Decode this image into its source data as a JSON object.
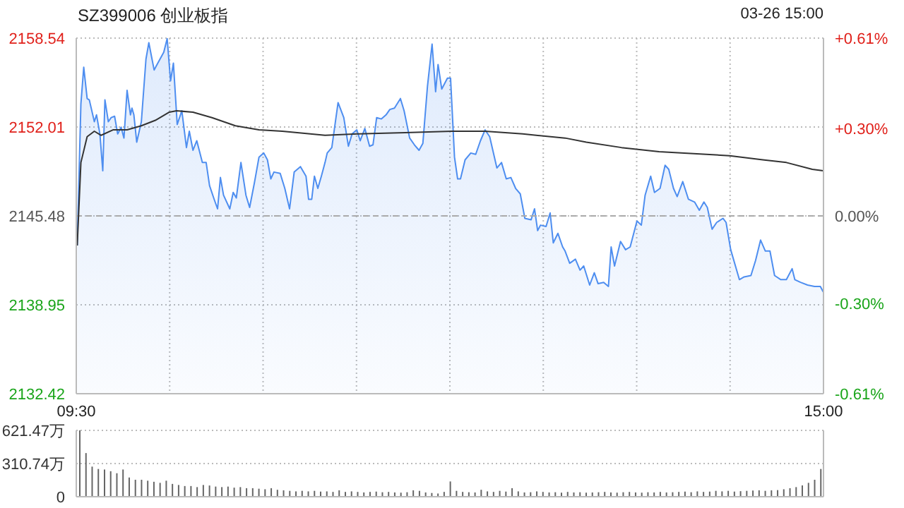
{
  "chart_data": [
    {
      "type": "area",
      "title": "SZ399006 创业板指",
      "subtitle": "03-26 15:00",
      "xlim": [
        9.5,
        15
      ],
      "xticks": [
        {
          "value": 9.5,
          "label": "09:30"
        },
        {
          "value": 10.1875,
          "label": null
        },
        {
          "value": 10.875,
          "label": null
        },
        {
          "value": 11.5625,
          "label": null
        },
        {
          "value": 12.25,
          "label": null
        },
        {
          "value": 12.9375,
          "label": null
        },
        {
          "value": 13.625,
          "label": null
        },
        {
          "value": 14.3125,
          "label": null
        },
        {
          "value": 15,
          "label": "15:00"
        }
      ],
      "ylim": [
        2132.42,
        2158.54
      ],
      "yticks": [
        2132.42,
        2138.95,
        2145.48,
        2152.01,
        2158.54
      ],
      "y2lim": [
        -0.61,
        0.61
      ],
      "y2ticks": [
        {
          "value": -0.61,
          "label": "-0.61%"
        },
        {
          "value": -0.3,
          "label": "-0.30%"
        },
        {
          "value": 0,
          "label": "0.00%"
        },
        {
          "value": 0.3,
          "label": "+0.30%"
        },
        {
          "value": 0.61,
          "label": "+0.61%"
        }
      ],
      "grid": true,
      "marker": "none",
      "ref_lines": [
        {
          "axis": "y",
          "value": 2145.48,
          "color": "#aaaaaa",
          "line_style": "dashed"
        }
      ],
      "series": [
        {
          "color": "#4e8ef0",
          "x": [
            9.507,
            9.534,
            9.555,
            9.58,
            9.596,
            9.633,
            9.649,
            9.674,
            9.695,
            9.711,
            9.736,
            9.757,
            9.782,
            9.805,
            9.83,
            9.851,
            9.874,
            9.899,
            9.91,
            9.924,
            9.945,
            9.979,
            10.013,
            10.034,
            10.073,
            10.1,
            10.144,
            10.169,
            10.194,
            10.215,
            10.243,
            10.277,
            10.311,
            10.332,
            10.359,
            10.387,
            10.405,
            10.428,
            10.456,
            10.481,
            10.515,
            10.54,
            10.561,
            10.584,
            10.63,
            10.655,
            10.678,
            10.712,
            10.749,
            10.776,
            10.811,
            10.845,
            10.88,
            10.907,
            10.932,
            10.955,
            11.001,
            11.035,
            11.07,
            11.104,
            11.15,
            11.191,
            11.21,
            11.233,
            11.253,
            11.278,
            11.304,
            11.331,
            11.347,
            11.381,
            11.427,
            11.469,
            11.503,
            11.53,
            11.565,
            11.59,
            11.624,
            11.659,
            11.684,
            11.711,
            11.746,
            11.78,
            11.808,
            11.842,
            11.886,
            11.913,
            11.954,
            11.989,
            12.023,
            12.051,
            12.085,
            12.119,
            12.145,
            12.163,
            12.19,
            12.232,
            12.255,
            12.284,
            12.307,
            12.328,
            12.362,
            12.404,
            12.44,
            12.475,
            12.509,
            12.543,
            12.596,
            12.63,
            12.665,
            12.699,
            12.734,
            12.768,
            12.802,
            12.848,
            12.873,
            12.896,
            12.917,
            12.958,
            12.988,
            13.011,
            13.045,
            13.08,
            13.098,
            13.132,
            13.174,
            13.208,
            13.235,
            13.279,
            13.313,
            13.341,
            13.382,
            13.417,
            13.437,
            13.462,
            13.506,
            13.543,
            13.577,
            13.627,
            13.659,
            13.687,
            13.728,
            13.756,
            13.797,
            13.834,
            13.861,
            13.896,
            13.923,
            13.964,
            14.006,
            14.051,
            14.086,
            14.12,
            14.145,
            14.18,
            14.214,
            14.26,
            14.283,
            14.317,
            14.381,
            14.416,
            14.466,
            14.5,
            14.537,
            14.572,
            14.606,
            14.64,
            14.686,
            14.727,
            14.769,
            14.789,
            14.831,
            14.883,
            14.934,
            14.977,
            14.998
          ],
          "values": [
            2143.3,
            2153.7,
            2156.4,
            2154.1,
            2154.0,
            2152.4,
            2152.9,
            2151.5,
            2148.8,
            2154.0,
            2152.4,
            2152.7,
            2152.8,
            2151.5,
            2152.0,
            2151.2,
            2154.7,
            2152.9,
            2153.4,
            2152.9,
            2150.9,
            2152.4,
            2157.0,
            2158.2,
            2156.2,
            2156.7,
            2157.5,
            2158.5,
            2155.4,
            2156.7,
            2152.2,
            2153.2,
            2150.5,
            2151.7,
            2150.3,
            2151.0,
            2150.3,
            2149.4,
            2149.4,
            2147.7,
            2146.7,
            2146.0,
            2148.3,
            2147.0,
            2146.0,
            2147.2,
            2146.8,
            2149.4,
            2147.0,
            2146.1,
            2147.9,
            2149.8,
            2150.1,
            2149.6,
            2148.2,
            2148.7,
            2148.6,
            2147.5,
            2146.0,
            2148.7,
            2149.1,
            2148.4,
            2146.7,
            2146.7,
            2148.4,
            2147.5,
            2148.4,
            2149.4,
            2150.1,
            2150.5,
            2153.8,
            2152.7,
            2150.6,
            2151.5,
            2151.8,
            2151.0,
            2151.9,
            2150.6,
            2150.7,
            2152.7,
            2152.6,
            2152.9,
            2153.3,
            2153.4,
            2154.1,
            2153.2,
            2151.2,
            2150.7,
            2150.3,
            2150.8,
            2155.0,
            2158.1,
            2154.6,
            2156.6,
            2154.8,
            2155.6,
            2155.6,
            2149.8,
            2148.2,
            2148.2,
            2149.6,
            2150.1,
            2150.0,
            2151.0,
            2151.8,
            2151.3,
            2149.0,
            2149.4,
            2148.2,
            2148.3,
            2147.5,
            2147.1,
            2145.3,
            2145.2,
            2146.0,
            2144.4,
            2144.8,
            2144.7,
            2145.7,
            2143.5,
            2144.2,
            2143.2,
            2142.9,
            2142.0,
            2142.3,
            2141.5,
            2141.8,
            2140.4,
            2141.3,
            2140.5,
            2140.6,
            2140.3,
            2143.2,
            2141.8,
            2143.6,
            2143.0,
            2143.2,
            2145.1,
            2144.8,
            2147.0,
            2148.4,
            2147.2,
            2147.5,
            2149.2,
            2148.9,
            2147.5,
            2146.9,
            2148.0,
            2146.7,
            2146.5,
            2145.9,
            2146.5,
            2146.1,
            2144.5,
            2145.0,
            2145.3,
            2145.0,
            2143.0,
            2140.8,
            2141.0,
            2141.1,
            2142.2,
            2143.7,
            2142.9,
            2142.9,
            2141.1,
            2140.8,
            2140.8,
            2141.6,
            2140.8,
            2140.6,
            2140.4,
            2140.3,
            2140.3,
            2139.9
          ]
        },
        {
          "type": "line",
          "color": "#333333",
          "x": [
            9.507,
            9.534,
            9.58,
            9.633,
            9.683,
            9.77,
            9.874,
            9.979,
            10.082,
            10.185,
            10.238,
            10.359,
            10.499,
            10.671,
            10.845,
            11.017,
            11.331,
            11.572,
            11.92,
            12.266,
            12.509,
            12.786,
            13.098,
            13.254,
            13.513,
            13.79,
            14.31,
            14.553,
            14.727,
            14.918,
            14.998
          ],
          "values": [
            2143.3,
            2149.4,
            2151.3,
            2151.7,
            2151.4,
            2151.8,
            2151.8,
            2152.1,
            2152.5,
            2153.1,
            2153.2,
            2153.1,
            2152.7,
            2152.1,
            2151.8,
            2151.7,
            2151.4,
            2151.5,
            2151.6,
            2151.7,
            2151.7,
            2151.5,
            2151.2,
            2150.9,
            2150.5,
            2150.2,
            2149.9,
            2149.6,
            2149.4,
            2148.9,
            2148.8
          ]
        }
      ]
    },
    {
      "type": "bar",
      "categories": [
        null,
        null,
        null,
        null,
        null,
        null,
        null,
        null,
        null,
        null,
        null,
        null,
        null,
        null,
        null,
        null,
        null,
        null,
        null,
        null,
        null,
        null,
        null,
        null,
        null,
        null,
        null,
        null,
        null,
        null,
        null,
        null,
        null,
        null,
        null,
        null,
        null,
        null,
        null,
        null,
        null,
        null,
        null,
        null,
        null,
        null,
        null,
        null,
        null,
        null,
        null,
        null,
        null,
        null,
        null,
        null,
        null,
        null,
        null,
        null,
        null,
        null,
        null,
        null,
        null,
        null,
        null,
        null,
        null,
        null,
        null,
        null,
        null,
        null,
        null,
        null,
        null,
        null,
        null,
        null,
        null,
        null,
        null,
        null,
        null,
        null,
        null,
        null,
        null,
        null,
        null,
        null,
        null,
        null,
        null,
        null,
        null,
        null,
        null,
        null,
        null,
        null,
        null,
        null,
        null,
        null,
        null,
        null,
        null,
        null,
        null,
        null,
        null,
        null,
        null,
        null,
        null,
        null,
        null,
        null,
        null
      ],
      "ylim": [
        0,
        621.47
      ],
      "yticks": [
        0,
        {
          "value": 310.74,
          "label": "310.74万"
        },
        {
          "value": 621.47,
          "label": "621.47万"
        }
      ],
      "grid": "y",
      "tick_labels": "y",
      "series": [
        {
          "color": "#666666",
          "values": [
            621.47,
            409,
            282,
            260,
            255,
            239,
            220,
            255,
            180,
            159,
            159,
            150,
            140,
            130,
            150,
            120,
            110,
            100,
            100,
            90,
            110,
            105,
            95,
            90,
            95,
            85,
            90,
            80,
            80,
            75,
            70,
            80,
            65,
            60,
            55,
            50,
            55,
            50,
            55,
            48,
            50,
            45,
            60,
            45,
            50,
            45,
            40,
            45,
            48,
            42,
            45,
            40,
            38,
            42,
            60,
            55,
            40,
            35,
            30,
            45,
            143,
            55,
            45,
            42,
            40,
            65,
            50,
            45,
            55,
            48,
            80,
            50,
            40,
            42,
            50,
            45,
            40,
            42,
            38,
            45,
            40,
            42,
            38,
            40,
            42,
            45,
            40,
            38,
            42,
            45,
            40,
            38,
            42,
            40,
            45,
            40,
            42,
            45,
            48,
            42,
            50,
            45,
            48,
            55,
            50,
            55,
            48,
            52,
            55,
            58,
            60,
            55,
            60,
            62,
            70,
            80,
            90,
            106,
            130,
            159,
            260
          ]
        }
      ]
    }
  ]
}
